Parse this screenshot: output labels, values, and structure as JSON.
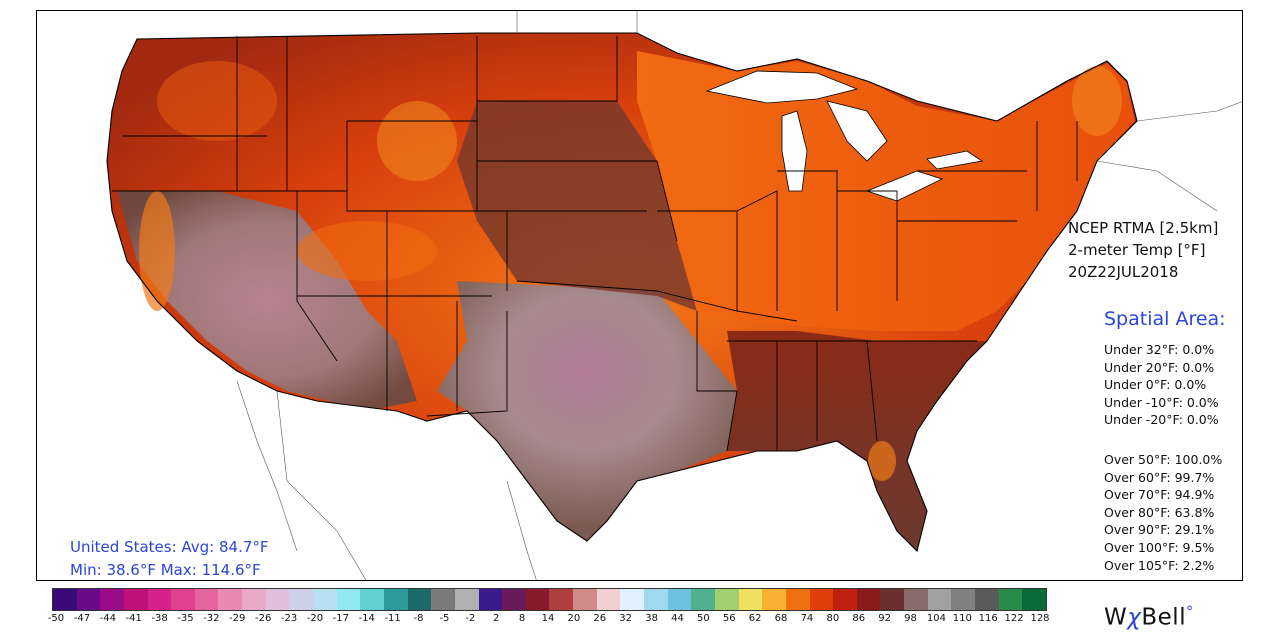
{
  "title_block": {
    "line1": "NCEP RTMA [2.5km]",
    "line2": "2-meter Temp [°F]",
    "line3": "20Z22JUL2018"
  },
  "spatial_area": {
    "title": "Spatial Area:",
    "under": [
      "Under 32°F: 0.0%",
      "Under 20°F: 0.0%",
      "Under 0°F: 0.0%",
      "Under -10°F: 0.0%",
      "Under -20°F: 0.0%"
    ],
    "over": [
      "Over 50°F: 100.0%",
      "Over 60°F: 99.7%",
      "Over 70°F: 94.9%",
      "Over 80°F: 63.8%",
      "Over 90°F: 29.1%",
      "Over 100°F: 9.5%",
      "Over 105°F: 2.2%"
    ]
  },
  "stats": {
    "line1": "United States: Avg:  84.7°F",
    "line2": "Min:  38.6°F Max: 114.6°F"
  },
  "colorbar": {
    "ticks": [
      "-50",
      "-47",
      "-44",
      "-41",
      "-38",
      "-35",
      "-32",
      "-29",
      "-26",
      "-23",
      "-20",
      "-17",
      "-14",
      "-11",
      "-8",
      "-5",
      "-2",
      "2",
      "8",
      "14",
      "20",
      "26",
      "32",
      "38",
      "44",
      "50",
      "56",
      "62",
      "68",
      "74",
      "80",
      "86",
      "92",
      "98",
      "104",
      "110",
      "116",
      "122",
      "128"
    ],
    "colors": [
      "#3b0a7a",
      "#6a0a8a",
      "#9a0a8a",
      "#c0107a",
      "#d6208a",
      "#e0408e",
      "#e565a0",
      "#e98ab5",
      "#e8aac8",
      "#e0c0da",
      "#cfd0e8",
      "#b8e0f0",
      "#90e8f0",
      "#60d0d0",
      "#2a9a9a",
      "#1a6a6a",
      "#7a7a7a",
      "#b0b0b0",
      "#3a1a8a",
      "#6a1a5a",
      "#8a1a2a",
      "#b04040",
      "#d08a8a",
      "#f0d0d0",
      "#e0f0ff",
      "#a0d8f0",
      "#70c0e0",
      "#50b090",
      "#a0d070",
      "#f0e060",
      "#f8b030",
      "#f07010",
      "#e04008",
      "#c02010",
      "#8a1a1a",
      "#6a3030",
      "#8a6a6a",
      "#a0a0a0",
      "#808080",
      "#5a5a5a",
      "#2a8a4a",
      "#0a6a3a"
    ]
  },
  "logo": {
    "w": "W",
    "chi": "χ",
    "bell": "Bell",
    "dot": "°"
  }
}
